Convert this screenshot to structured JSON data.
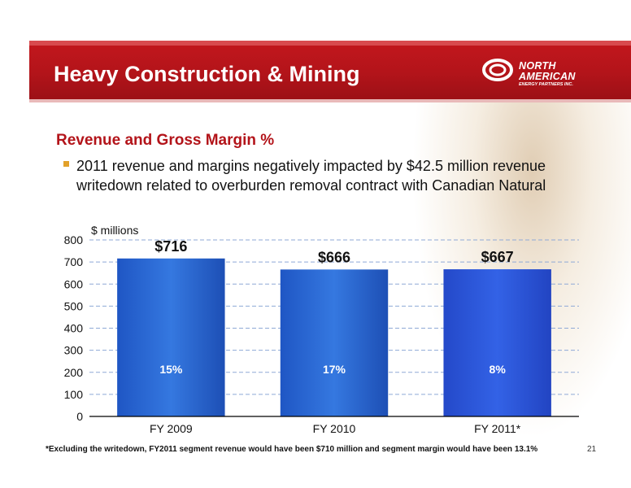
{
  "header": {
    "title": "Heavy Construction & Mining"
  },
  "logo": {
    "line1": "NORTH",
    "line2": "AMERICAN",
    "subtitle": "ENERGY PARTNERS INC."
  },
  "section": {
    "subtitle": "Revenue and Gross Margin %",
    "bullet": "2011 revenue and margins negatively impacted by $42.5 million revenue writedown related to overburden removal contract with Canadian Natural"
  },
  "chart_data": {
    "type": "bar",
    "ylabel": "$ millions",
    "categories": [
      "FY 2009",
      "FY 2010",
      "FY 2011*"
    ],
    "values": [
      716,
      666,
      667
    ],
    "value_labels": [
      "$716",
      "$666",
      "$667"
    ],
    "margin_labels": [
      "15%",
      "17%",
      "8%"
    ],
    "ylim": [
      0,
      800
    ],
    "yticks": [
      0,
      100,
      200,
      300,
      400,
      500,
      600,
      700,
      800
    ],
    "grid": true,
    "colors": {
      "bar_top": "#2f6fd6",
      "bar_bottom": "#1c4fb8",
      "bar_last": "#2b55d8",
      "grid": "#8fa9d6"
    }
  },
  "footer": {
    "footnote": "*Excluding the writedown, FY2011 segment revenue would have been $710 million and segment margin would have been 13.1%",
    "page_number": "21"
  }
}
